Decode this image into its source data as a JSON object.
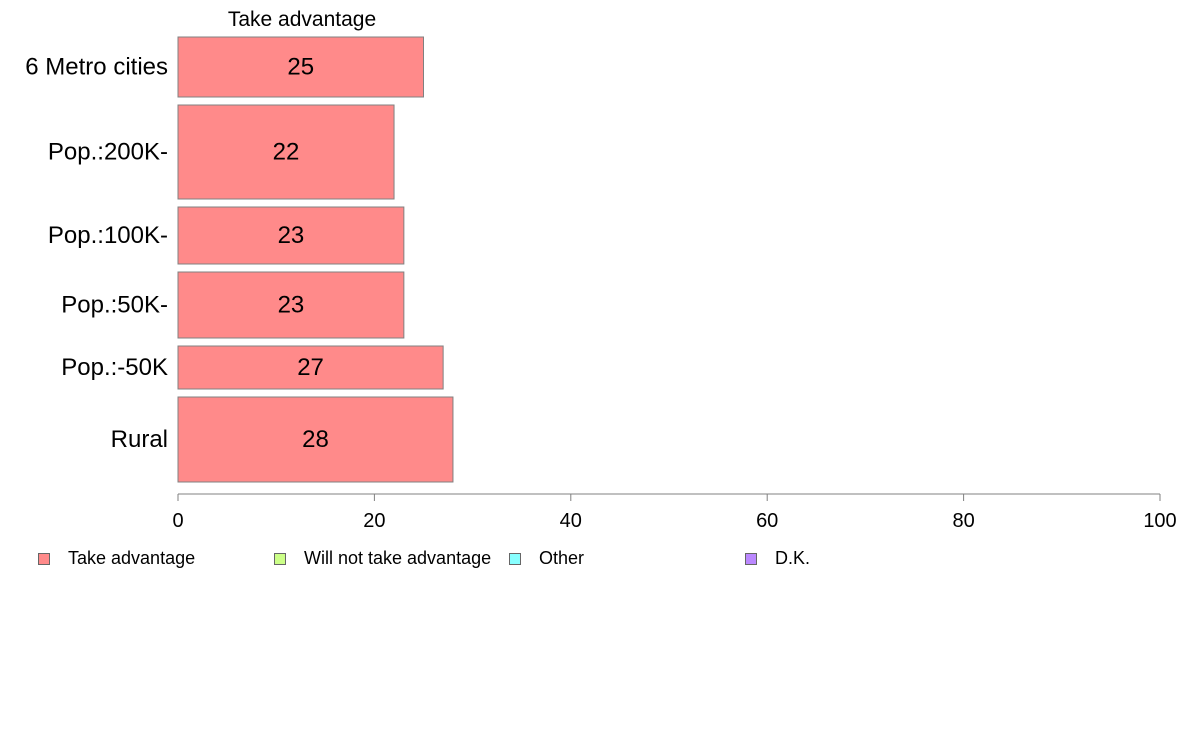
{
  "chart_data": {
    "type": "bar",
    "orientation": "horizontal",
    "panel_title": "Take advantage",
    "categories": [
      "6 Metro cities",
      "Pop.:200K-",
      "Pop.:100K-",
      "Pop.:50K-",
      "Pop.:-50K",
      "Rural"
    ],
    "series": [
      {
        "name": "Take advantage",
        "values": [
          25,
          22,
          23,
          23,
          27,
          28
        ],
        "color": "#ff8a8a"
      }
    ],
    "value_labels": [
      "25",
      "22",
      "23",
      "23",
      "27",
      "28"
    ],
    "xlim": [
      0,
      100
    ],
    "xticks": [
      0,
      20,
      40,
      60,
      80,
      100
    ],
    "xtick_labels": [
      "0",
      "20",
      "40",
      "60",
      "80",
      "100"
    ],
    "grid": false,
    "legend_position": "bottom"
  },
  "legend": [
    {
      "label": "Take advantage",
      "color": "#ff8a8a"
    },
    {
      "label": "Will not take advantage",
      "color": "#ccff88"
    },
    {
      "label": "Other",
      "color": "#88ffff"
    },
    {
      "label": "D.K.",
      "color": "#bb88ff"
    }
  ]
}
